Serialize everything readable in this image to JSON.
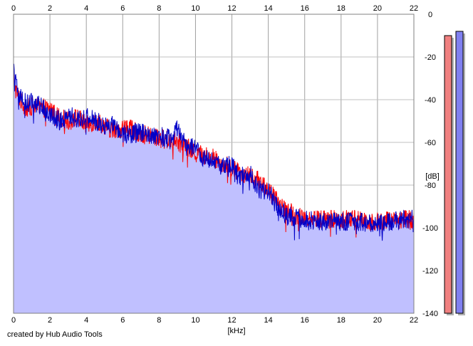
{
  "footer": {
    "credit": "created by Hub Audio Tools"
  },
  "chart_data": {
    "type": "area",
    "xlabel": "[kHz]",
    "ylabel": "[dB]",
    "xlim": [
      0,
      22
    ],
    "ylim": [
      -140,
      0
    ],
    "x_ticks": [
      0,
      2,
      4,
      6,
      8,
      10,
      12,
      14,
      16,
      18,
      20,
      22
    ],
    "y_ticks": [
      0,
      -20,
      -40,
      -60,
      -80,
      -100,
      -120,
      -140
    ],
    "x_tick_positions": [
      "top",
      "bottom"
    ],
    "y_tick_position": "right",
    "grid": true,
    "fill_color": "#c0c0ff",
    "fill_baseline": -140,
    "x": [
      0,
      0.1,
      0.25,
      0.5,
      0.75,
      1.0,
      1.5,
      2.0,
      2.5,
      3.0,
      3.5,
      4.0,
      4.5,
      5.0,
      5.5,
      6.0,
      6.5,
      7.0,
      7.5,
      8.0,
      8.5,
      9.0,
      9.5,
      10.0,
      10.5,
      11.0,
      11.5,
      12.0,
      12.5,
      13.0,
      13.5,
      14.0,
      14.5,
      15.0,
      15.5,
      16.0,
      17.0,
      18.0,
      19.0,
      19.5,
      20.0,
      20.5,
      21.0,
      21.5,
      22.0
    ],
    "series": [
      {
        "color": "#ff0000",
        "values": [
          -28,
          -35,
          -38,
          -42,
          -44,
          -43,
          -44,
          -44,
          -48,
          -50,
          -48,
          -52,
          -50,
          -52,
          -55,
          -53,
          -54,
          -56,
          -57,
          -58,
          -59,
          -60,
          -62,
          -65,
          -66,
          -67,
          -70,
          -72,
          -74,
          -76,
          -78,
          -82,
          -88,
          -92,
          -94,
          -95,
          -96,
          -96,
          -96,
          -97,
          -97,
          -96,
          -96,
          -96,
          -96
        ]
      },
      {
        "color": "#0000c8",
        "values": [
          -24,
          -32,
          -37,
          -40,
          -42,
          -41,
          -43,
          -46,
          -50,
          -47,
          -49,
          -48,
          -50,
          -52,
          -52,
          -56,
          -56,
          -55,
          -58,
          -57,
          -58,
          -54,
          -62,
          -62,
          -68,
          -68,
          -72,
          -70,
          -76,
          -75,
          -82,
          -83,
          -90,
          -94,
          -95,
          -96,
          -97,
          -97,
          -97,
          -98,
          -98,
          -97,
          -97,
          -96,
          -96
        ]
      }
    ],
    "level_meters": [
      {
        "channel": "left",
        "color": "#f08080",
        "level_db": -10
      },
      {
        "channel": "right",
        "color": "#8080f0",
        "level_db": -8
      }
    ]
  }
}
